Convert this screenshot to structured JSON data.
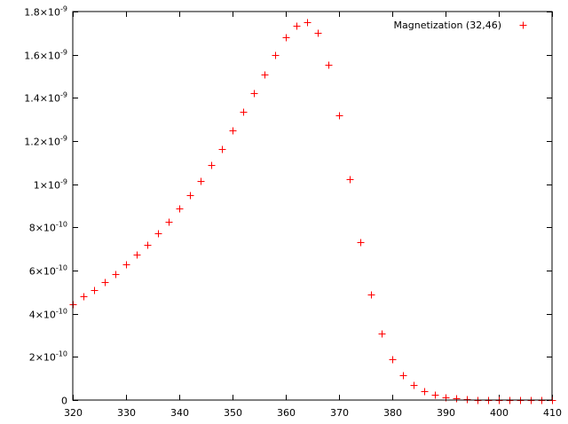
{
  "chart_data": {
    "type": "scatter",
    "title": "",
    "xlabel": "",
    "ylabel": "",
    "xlim": [
      320,
      410
    ],
    "ylim": [
      0,
      1.8e-09
    ],
    "grid": false,
    "legend_position": "top-right",
    "marker": "plus",
    "color": "#ff0000",
    "x_ticks": [
      {
        "value": 320,
        "label": "320"
      },
      {
        "value": 330,
        "label": "330"
      },
      {
        "value": 340,
        "label": "340"
      },
      {
        "value": 350,
        "label": "350"
      },
      {
        "value": 360,
        "label": "360"
      },
      {
        "value": 370,
        "label": "370"
      },
      {
        "value": 380,
        "label": "380"
      },
      {
        "value": 390,
        "label": "390"
      },
      {
        "value": 400,
        "label": "400"
      },
      {
        "value": 410,
        "label": "410"
      }
    ],
    "y_ticks": [
      {
        "value": 0,
        "label": "0"
      },
      {
        "value": 2e-10,
        "mantissa": "2×10",
        "exp": "-10"
      },
      {
        "value": 4e-10,
        "mantissa": "4×10",
        "exp": "-10"
      },
      {
        "value": 6e-10,
        "mantissa": "6×10",
        "exp": "-10"
      },
      {
        "value": 8e-10,
        "mantissa": "8×10",
        "exp": "-10"
      },
      {
        "value": 1e-09,
        "mantissa": "1×10",
        "exp": "-9"
      },
      {
        "value": 1.2e-09,
        "mantissa": "1.2×10",
        "exp": "-9"
      },
      {
        "value": 1.4e-09,
        "mantissa": "1.4×10",
        "exp": "-9"
      },
      {
        "value": 1.6e-09,
        "mantissa": "1.6×10",
        "exp": "-9"
      },
      {
        "value": 1.8e-09,
        "mantissa": "1.8×10",
        "exp": "-9"
      }
    ],
    "series": [
      {
        "name": "Magnetization (32,46)",
        "x": [
          320,
          322,
          324,
          326,
          328,
          330,
          332,
          334,
          336,
          338,
          340,
          342,
          344,
          346,
          348,
          350,
          352,
          354,
          356,
          358,
          360,
          362,
          364,
          366,
          368,
          370,
          372,
          374,
          376,
          378,
          380,
          382,
          384,
          386,
          388,
          390,
          392,
          394,
          396,
          398,
          400,
          402,
          404,
          406,
          408,
          410
        ],
        "y": [
          4.45e-10,
          4.8e-10,
          5.1e-10,
          5.47e-10,
          5.85e-10,
          6.27e-10,
          6.72e-10,
          7.2e-10,
          7.72e-10,
          8.27e-10,
          8.88e-10,
          9.5e-10,
          1.015e-09,
          1.09e-09,
          1.165e-09,
          1.25e-09,
          1.335e-09,
          1.42e-09,
          1.51e-09,
          1.6e-09,
          1.68e-09,
          1.735e-09,
          1.75e-09,
          1.7e-09,
          1.555e-09,
          1.32e-09,
          1.025e-09,
          7.3e-10,
          4.9e-10,
          3.07e-10,
          1.87e-10,
          1.14e-10,
          7e-11,
          4.1e-11,
          2.4e-11,
          1.3e-11,
          7e-12,
          4e-12,
          2e-12,
          1e-12,
          5e-13,
          3e-13,
          1e-13,
          1e-13,
          0,
          0
        ]
      }
    ]
  }
}
